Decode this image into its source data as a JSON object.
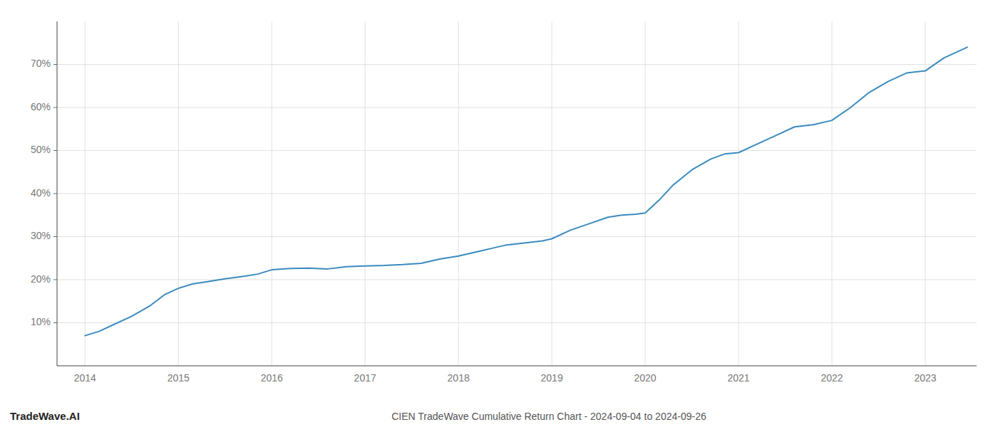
{
  "chart_data": {
    "type": "line",
    "title": "CIEN TradeWave Cumulative Return Chart - 2024-09-04 to 2024-09-26",
    "annotations": [
      "TradeWave.AI"
    ],
    "x": [
      2014.0,
      2014.15,
      2014.3,
      2014.5,
      2014.7,
      2014.85,
      2015.0,
      2015.15,
      2015.3,
      2015.5,
      2015.7,
      2015.85,
      2016.0,
      2016.2,
      2016.4,
      2016.6,
      2016.8,
      2017.0,
      2017.2,
      2017.4,
      2017.6,
      2017.8,
      2018.0,
      2018.2,
      2018.4,
      2018.5,
      2018.7,
      2018.9,
      2019.0,
      2019.2,
      2019.4,
      2019.6,
      2019.75,
      2019.9,
      2020.0,
      2020.15,
      2020.3,
      2020.5,
      2020.7,
      2020.85,
      2021.0,
      2021.2,
      2021.4,
      2021.6,
      2021.8,
      2022.0,
      2022.2,
      2022.4,
      2022.6,
      2022.8,
      2023.0,
      2023.2,
      2023.45
    ],
    "values": [
      7.0,
      8.0,
      9.5,
      11.5,
      14.0,
      16.5,
      18.0,
      19.0,
      19.5,
      20.2,
      20.8,
      21.3,
      22.3,
      22.6,
      22.7,
      22.5,
      23.0,
      23.2,
      23.3,
      23.5,
      23.8,
      24.8,
      25.5,
      26.5,
      27.5,
      28.0,
      28.5,
      29.0,
      29.5,
      31.5,
      33.0,
      34.5,
      35.0,
      35.2,
      35.5,
      38.5,
      42.0,
      45.5,
      48.0,
      49.2,
      49.5,
      51.5,
      53.5,
      55.5,
      56.0,
      57.0,
      60.0,
      63.5,
      66.0,
      68.0,
      68.5,
      71.5,
      74.0
    ],
    "color": "#3a8abf",
    "xlim": [
      2013.7,
      2023.55
    ],
    "ylim": [
      0,
      80
    ],
    "xticks": [
      2014,
      2015,
      2016,
      2017,
      2018,
      2019,
      2020,
      2021,
      2022,
      2023
    ],
    "yticks": [
      {
        "value": 10,
        "label": "10%"
      },
      {
        "value": 20,
        "label": "20%"
      },
      {
        "value": 30,
        "label": "30%"
      },
      {
        "value": 40,
        "label": "40%"
      },
      {
        "value": 50,
        "label": "50%"
      },
      {
        "value": 60,
        "label": "60%"
      },
      {
        "value": 70,
        "label": "70%"
      }
    ],
    "grid": true
  }
}
